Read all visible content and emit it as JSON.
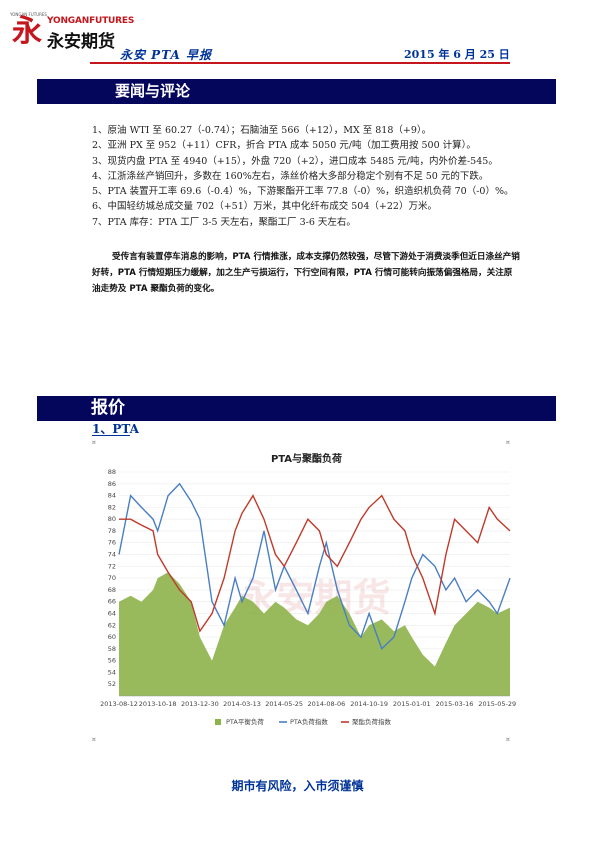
{
  "header": {
    "logo_small_text": "YONGAN FUTURES",
    "logo_en": "YONGANFUTURES",
    "logo_cn": "永安期货",
    "report_title": "永安 PTA 早报",
    "date": "2015 年 6 月 25 日"
  },
  "sections": {
    "news_title": "要闻与评论",
    "quote_title": "报价",
    "quote_sub": "1、PTA"
  },
  "news_items": [
    "1、原油 WTI 至 60.27（-0.74）；石脑油至 566（+12），MX 至 818（+9）。",
    "2、亚洲 PX 至 952（+11）CFR，折合 PTA 成本 5050 元/吨（加工费用按 500 计算）。",
    "3、现货内盘 PTA 至 4940（+15），外盘 720（+2），进口成本 5485 元/吨，内外价差-545。",
    "4、江浙涤丝产销回升，多数在 160%左右，涤丝价格大多部分稳定个别有不足 50 元的下跌。",
    "5、PTA 装置开工率 69.6（-0.4）%，下游聚酯开工率 77.8（-0）%，织造织机负荷 70（-0）%。",
    "6、中国轻纺城总成交量 702（+51）万米，其中化纤布成交 504（+22）万米。",
    "7、PTA 库存：PTA 工厂 3-5 天左右，聚酯工厂 3-6 天左右。"
  ],
  "commentary": "受传言有装置停车消息的影响，PTA 行情推涨，成本支撑仍然较强，尽管下游处于消费淡季但近日涤丝产销好转，PTA 行情短期压力缓解，加之生产亏损运行，下行空间有限，PTA 行情可能转向振荡偏强格局，关注原油走势及 PTA 聚酯负荷的变化。",
  "footer": "期市有风险，入市须谨慎",
  "chart_data": {
    "type": "line",
    "title": "PTA与聚酯负荷",
    "watermark": "永安期货",
    "x_ticks": [
      "2013-08-12",
      "2013-10-18",
      "2013-12-30",
      "2014-03-13",
      "2014-05-25",
      "2014-08-06",
      "2014-10-19",
      "2015-01-01",
      "2015-03-16",
      "2015-05-29"
    ],
    "ylim": [
      50,
      88
    ],
    "y_ticks": [
      52,
      54,
      56,
      58,
      60,
      62,
      64,
      66,
      68,
      70,
      72,
      74,
      76,
      78,
      80,
      82,
      84,
      86,
      88
    ],
    "legend_position": "bottom",
    "colors": {
      "pta_plant": "#8db24a",
      "pta_load": "#4a7ec4",
      "polyester_load": "#c0392b"
    },
    "x": [
      "2013-08-12",
      "2013-09-01",
      "2013-09-20",
      "2013-10-10",
      "2013-10-18",
      "2013-11-05",
      "2013-11-25",
      "2013-12-15",
      "2013-12-30",
      "2014-01-20",
      "2014-02-10",
      "2014-03-01",
      "2014-03-13",
      "2014-04-01",
      "2014-04-20",
      "2014-05-10",
      "2014-05-25",
      "2014-06-15",
      "2014-07-05",
      "2014-07-25",
      "2014-08-06",
      "2014-08-25",
      "2014-09-15",
      "2014-10-05",
      "2014-10-19",
      "2014-11-10",
      "2014-12-01",
      "2014-12-20",
      "2015-01-01",
      "2015-01-20",
      "2015-02-10",
      "2015-03-01",
      "2015-03-16",
      "2015-04-05",
      "2015-04-25",
      "2015-05-15",
      "2015-05-29",
      "2015-06-20"
    ],
    "series": [
      {
        "name": "PTA平衡负荷",
        "values": [
          66,
          67,
          66,
          68,
          70,
          71,
          69,
          66,
          60,
          56,
          62,
          65,
          67,
          66,
          64,
          66,
          65,
          63,
          62,
          64,
          66,
          67,
          64,
          60,
          62,
          63,
          61,
          62,
          60,
          57,
          55,
          59,
          62,
          64,
          66,
          65,
          64,
          65
        ]
      },
      {
        "name": "PTA负荷指数",
        "values": [
          74,
          84,
          82,
          80,
          78,
          84,
          86,
          83,
          80,
          66,
          62,
          70,
          66,
          70,
          78,
          68,
          72,
          68,
          64,
          72,
          76,
          68,
          62,
          60,
          64,
          58,
          60,
          66,
          70,
          74,
          72,
          68,
          70,
          66,
          68,
          66,
          64,
          70
        ]
      },
      {
        "name": "聚酯负荷指数",
        "values": [
          80,
          80,
          79,
          78,
          74,
          71,
          68,
          66,
          61,
          64,
          70,
          78,
          81,
          84,
          80,
          74,
          72,
          76,
          80,
          78,
          74,
          72,
          76,
          80,
          82,
          84,
          80,
          78,
          74,
          70,
          64,
          74,
          80,
          78,
          76,
          82,
          80,
          78
        ]
      }
    ]
  }
}
